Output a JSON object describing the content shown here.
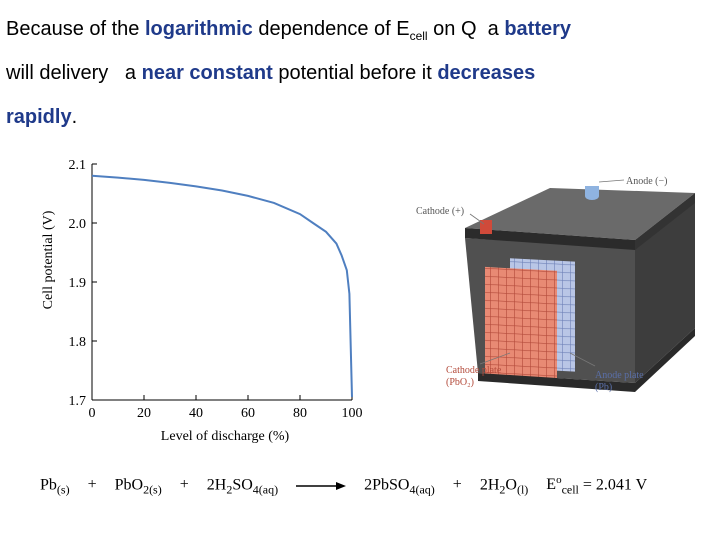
{
  "text": {
    "l1_a": "Because of the ",
    "l1_b": "logarithmic",
    "l1_c": " dependence of E",
    "l1_sub": "cell",
    "l1_d": " on Q  a ",
    "l1_e": "battery",
    "l2_a": "will delivery   a ",
    "l2_b": "near constant",
    "l2_c": " potential before it ",
    "l2_d": "decreases",
    "l3_a": "rapidly",
    "l3_b": "."
  },
  "chart_data": {
    "type": "line",
    "xlabel": "Level of discharge (%)",
    "ylabel": "Cell potential (V)",
    "xlim": [
      0,
      100
    ],
    "ylim": [
      1.7,
      2.1
    ],
    "x_ticks": [
      "0",
      "20",
      "40",
      "60",
      "80",
      "100"
    ],
    "y_ticks": [
      "1.7",
      "1.8",
      "1.9",
      "2.0",
      "2.1"
    ],
    "series": [
      {
        "x": [
          0,
          10,
          20,
          30,
          40,
          50,
          60,
          70,
          80,
          85,
          90,
          94,
          96,
          98,
          99,
          100
        ],
        "y": [
          2.08,
          2.077,
          2.073,
          2.068,
          2.062,
          2.055,
          2.046,
          2.034,
          2.015,
          2.0,
          1.985,
          1.965,
          1.945,
          1.92,
          1.88,
          1.705
        ]
      }
    ],
    "color": "#4f7fc0"
  },
  "battery": {
    "anode_label": "Anode (−)",
    "cathode_label": "Cathode (+)",
    "cathode_plate": "Cathode plate",
    "cathode_plate_formula": "(PbO₂)",
    "anode_plate": "Anode plate",
    "anode_plate_formula": "(Pb)"
  },
  "equation": {
    "r1": "Pb",
    "r1_sub": "(s)",
    "plus1": "+",
    "r2": "PbO",
    "r2_sub": "2(s)",
    "plus2": "+",
    "r3": "2H",
    "r3_sub1": "2",
    "r3_b": "SO",
    "r3_sub2": "4(aq)",
    "p1": "2PbSO",
    "p1_sub": "4(aq)",
    "plus3": "+",
    "p2": "2H",
    "p2_sub1": "2",
    "p2_b": "O",
    "p2_sub2": "(l)",
    "e": "E",
    "e_sup": "o",
    "e_sub": "cell",
    "e_val": " = 2.041 V"
  }
}
